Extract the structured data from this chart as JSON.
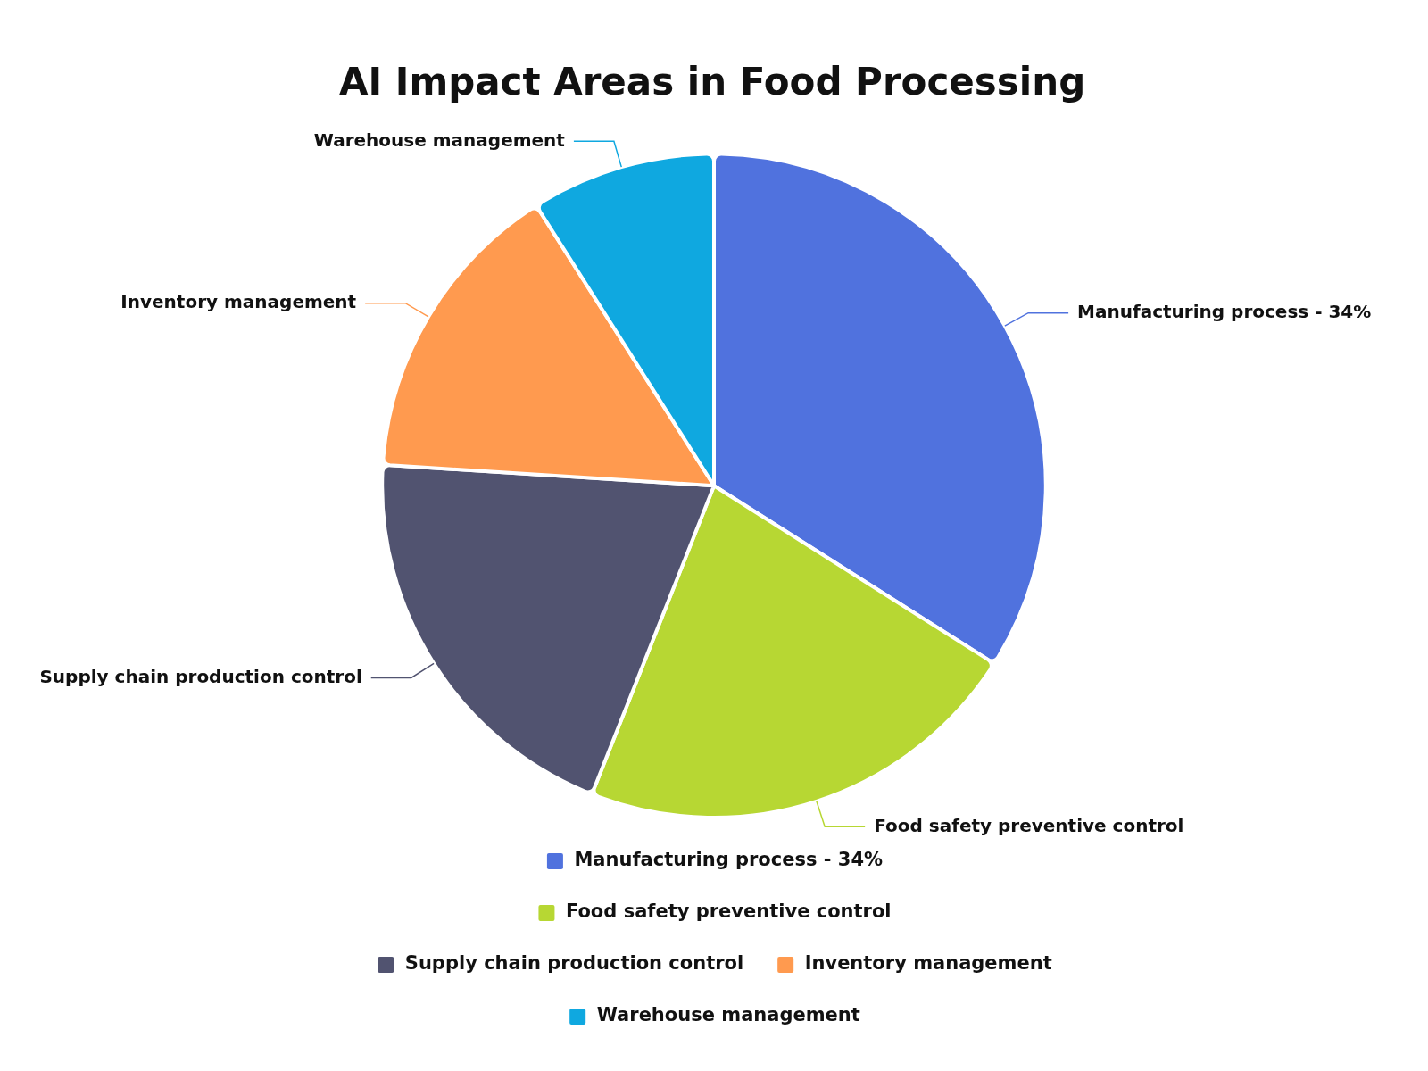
{
  "chart_data": {
    "type": "pie",
    "title": "AI Impact Areas in Food Processing",
    "categories": [
      "Manufacturing process - 34%",
      "Food safety preventive control",
      "Supply chain production control",
      "Inventory management",
      "Warehouse management"
    ],
    "values": [
      34,
      22,
      20,
      15,
      9
    ],
    "colors": [
      "#5072de",
      "#b7d733",
      "#515370",
      "#ff9a4f",
      "#0fa8e0"
    ],
    "legend": "bottom"
  }
}
